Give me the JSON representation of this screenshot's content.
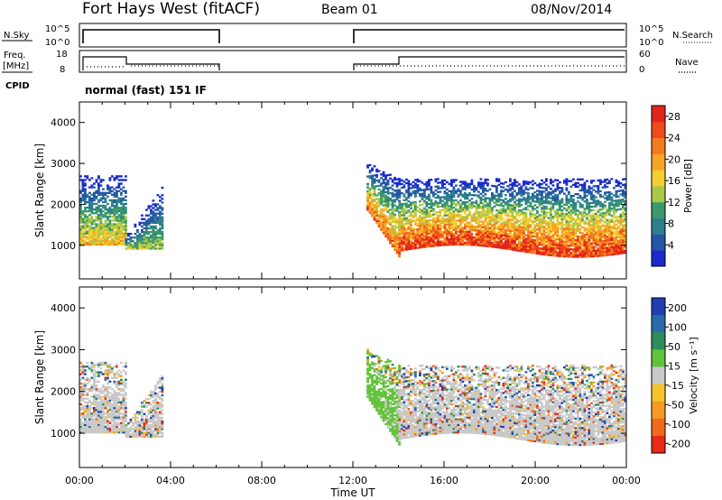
{
  "header": {
    "station": "Fort Hays West (fitACF)",
    "beam": "Beam 01",
    "date": "08/Nov/2014"
  },
  "top_panels": {
    "nsky_label": "N.Sky",
    "nsky_ticks": [
      "10^5",
      "10^0"
    ],
    "nsearch_label": "N.Search",
    "nsearch_ticks": [
      "10^5",
      "10^0"
    ],
    "freq_label": "Freq.",
    "freq_unit": "[MHz]",
    "freq_ticks": [
      "18",
      "8"
    ],
    "nave_label": "Nave",
    "nave_ticks": [
      "60",
      "0"
    ],
    "cpid_label": "CPID",
    "cpid_text": "normal (fast) 151 IF"
  },
  "colors": {
    "power": [
      "#1a2acc",
      "#2456a6",
      "#2e7e8c",
      "#3c9a6a",
      "#a9c94a",
      "#f3cf2f",
      "#f7a325",
      "#f27a20",
      "#ee4a1b",
      "#e2231a"
    ],
    "velocity": [
      "#1f3fb0",
      "#2a6aa8",
      "#2f8c5a",
      "#62c33a",
      "#c9c9c9",
      "#f6c42c",
      "#f59a22",
      "#f06a1c",
      "#e82a18"
    ]
  },
  "chart_data": [
    {
      "type": "heatmap",
      "panel": "power",
      "ylabel": "Slant Range [km]",
      "yticks": [
        "1000",
        "2000",
        "3000",
        "4000"
      ],
      "ylim": [
        180,
        4500
      ],
      "x_ticks": [
        "00:00",
        "04:00",
        "08:00",
        "12:00",
        "16:00",
        "20:00",
        "00:00"
      ],
      "xlim_hours": [
        0,
        24
      ],
      "colorbar_label": "Power [dB]",
      "colorbar_ticks": [
        "4",
        "8",
        "12",
        "16",
        "20",
        "24",
        "28"
      ],
      "colorbar_range": [
        0,
        30
      ],
      "echo_regions": [
        {
          "t_start": 0.0,
          "t_end": 2.0,
          "r_low": 1000,
          "r_high": 2700,
          "peak_power_db": 18
        },
        {
          "t_start": 2.0,
          "t_end": 3.6,
          "r_low": 900,
          "r_high": 2400,
          "peak_power_db": 14
        },
        {
          "t_start": 12.6,
          "t_end": 14.0,
          "r_low": 700,
          "r_high": 3000,
          "peak_power_db": 24
        },
        {
          "t_start": 14.0,
          "t_end": 24.0,
          "r_low": 850,
          "r_high": 2600,
          "peak_power_db": 28
        }
      ]
    },
    {
      "type": "heatmap",
      "panel": "velocity",
      "ylabel": "Slant Range [km]",
      "yticks": [
        "1000",
        "2000",
        "3000",
        "4000"
      ],
      "ylim": [
        180,
        4500
      ],
      "x_ticks": [
        "00:00",
        "04:00",
        "08:00",
        "12:00",
        "16:00",
        "20:00",
        "00:00"
      ],
      "xlim_hours": [
        0,
        24
      ],
      "xlabel": "Time UT",
      "colorbar_label": "Velocity [m s⁻¹]",
      "colorbar_ticks": [
        "200",
        "100",
        "50",
        "15",
        "-15",
        "-50",
        "-100",
        "-200"
      ],
      "colorbar_range": [
        -250,
        250
      ],
      "echo_regions": [
        {
          "t_start": 0.0,
          "t_end": 2.0,
          "r_low": 1000,
          "r_high": 2700,
          "velocity_ms": 0
        },
        {
          "t_start": 2.0,
          "t_end": 3.6,
          "r_low": 900,
          "r_high": 2400,
          "velocity_ms": 0
        },
        {
          "t_start": 12.6,
          "t_end": 14.0,
          "r_low": 700,
          "r_high": 3000,
          "velocity_ms": 30
        },
        {
          "t_start": 14.0,
          "t_end": 24.0,
          "r_low": 850,
          "r_high": 2600,
          "velocity_ms": 0
        }
      ]
    }
  ]
}
